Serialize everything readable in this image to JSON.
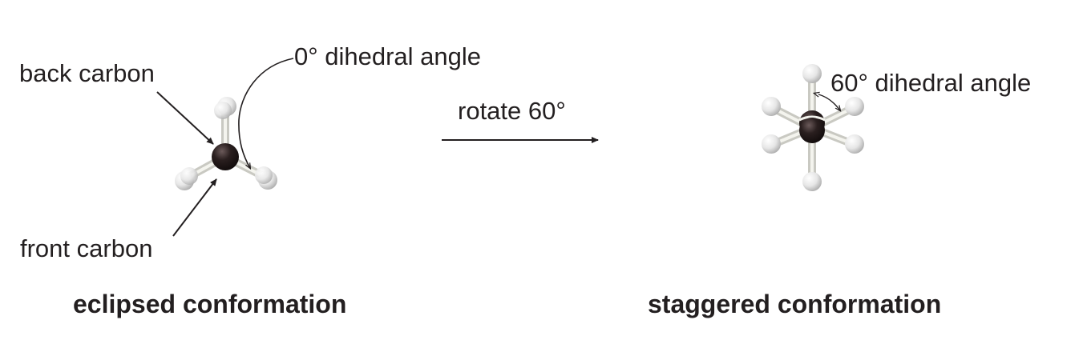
{
  "eclipsed": {
    "label_back_carbon": "back carbon",
    "label_front_carbon": "front carbon",
    "label_dihedral": "0° dihedral angle",
    "caption": "eclipsed conformation"
  },
  "transition": {
    "label": "rotate 60°"
  },
  "staggered": {
    "label_dihedral": "60° dihedral angle",
    "caption": "staggered conformation"
  },
  "colors": {
    "carbon": "#2a1f1f",
    "hydrogen": "#e8e8e8",
    "bond": "#d9d9d2",
    "text": "#231f20"
  }
}
